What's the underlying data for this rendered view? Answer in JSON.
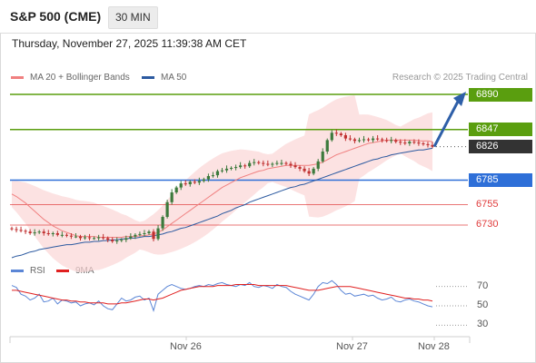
{
  "header": {
    "title": "S&P 500 (CME)",
    "interval": "30 MIN"
  },
  "timestamp": "Thursday, November 27, 2025 11:39:38 AM CET",
  "credit": "Research © 2025 Trading Central",
  "legend": {
    "ma20": "MA 20 + Bollinger Bands",
    "ma50": "MA 50",
    "rsi": "RSI",
    "rsi_ma": "9MA"
  },
  "colors": {
    "resistance": "#5a9e0f",
    "support": "#2e6fd8",
    "support_minor": "#e03c3c",
    "price_tag": "#333333",
    "ma20": "#f08080",
    "ma50": "#2c5aa0",
    "bollinger_fill": "#fbd5d5",
    "rsi": "#5b86d6",
    "rsi_ma": "#e02020",
    "candle_up": "#3c7a3c",
    "candle_down": "#c03030",
    "forecast_arrow": "#2e5fa8"
  },
  "chart_data": [
    {
      "type": "candlestick",
      "name": "price",
      "y_range": [
        6700,
        6900
      ],
      "x_ticks": [
        "Nov 26",
        "Nov 27",
        "Nov 28"
      ],
      "levels": [
        {
          "label": "6890",
          "value": 6890,
          "kind": "resistance"
        },
        {
          "label": "6847",
          "value": 6847,
          "kind": "resistance"
        },
        {
          "label": "6826",
          "value": 6826,
          "kind": "current"
        },
        {
          "label": "6785",
          "value": 6785,
          "kind": "support"
        },
        {
          "label": "6755",
          "value": 6755,
          "kind": "support_minor"
        },
        {
          "label": "6730",
          "value": 6730,
          "kind": "support_minor"
        }
      ],
      "close": [
        6725,
        6724,
        6723,
        6722,
        6720,
        6721,
        6722,
        6720,
        6719,
        6720,
        6718,
        6718,
        6717,
        6716,
        6716,
        6714,
        6715,
        6714,
        6714,
        6715,
        6714,
        6712,
        6710,
        6711,
        6712,
        6714,
        6716,
        6718,
        6719,
        6720,
        6722,
        6713,
        6726,
        6740,
        6758,
        6770,
        6776,
        6781,
        6780,
        6783,
        6782,
        6784,
        6786,
        6790,
        6791,
        6796,
        6797,
        6799,
        6800,
        6801,
        6803,
        6802,
        6806,
        6807,
        6806,
        6805,
        6804,
        6805,
        6806,
        6806,
        6805,
        6803,
        6801,
        6799,
        6796,
        6793,
        6799,
        6808,
        6820,
        6834,
        6843,
        6842,
        6840,
        6836,
        6835,
        6833,
        6834,
        6835,
        6834,
        6836,
        6835,
        6834,
        6833,
        6834,
        6832,
        6831,
        6830,
        6832,
        6831,
        6830,
        6829,
        6828,
        6826
      ],
      "ma20": [
        6768,
        6765,
        6761,
        6757,
        6752,
        6747,
        6742,
        6737,
        6733,
        6729,
        6726,
        6723,
        6721,
        6719,
        6717,
        6716,
        6716,
        6716,
        6716,
        6715,
        6715,
        6715,
        6715,
        6715,
        6715,
        6716,
        6716,
        6716,
        6717,
        6717,
        6718,
        6719,
        6721,
        6724,
        6728,
        6732,
        6736,
        6740,
        6744,
        6748,
        6752,
        6756,
        6760,
        6764,
        6768,
        6772,
        6776,
        6779,
        6782,
        6785,
        6788,
        6790,
        6792,
        6794,
        6796,
        6797,
        6799,
        6800,
        6801,
        6802,
        6803,
        6803,
        6803,
        6803,
        6803,
        6803,
        6804,
        6805,
        6807,
        6810,
        6813,
        6816,
        6818,
        6820,
        6822,
        6824,
        6826,
        6828,
        6830,
        6831,
        6832,
        6833,
        6834,
        6834,
        6834,
        6834,
        6834,
        6834,
        6834,
        6833,
        6833,
        6833,
        6832
      ],
      "ma50": [
        6690,
        6692,
        6693,
        6695,
        6697,
        6698,
        6700,
        6701,
        6702,
        6703,
        6704,
        6705,
        6706,
        6706,
        6707,
        6708,
        6709,
        6709,
        6710,
        6710,
        6711,
        6711,
        6712,
        6712,
        6713,
        6713,
        6714,
        6714,
        6715,
        6716,
        6716,
        6717,
        6718,
        6719,
        6721,
        6722,
        6724,
        6726,
        6727,
        6729,
        6731,
        6733,
        6735,
        6737,
        6739,
        6741,
        6744,
        6746,
        6748,
        6751,
        6753,
        6755,
        6758,
        6760,
        6762,
        6764,
        6766,
        6768,
        6770,
        6772,
        6774,
        6776,
        6777,
        6779,
        6780,
        6782,
        6784,
        6786,
        6788,
        6790,
        6792,
        6794,
        6796,
        6798,
        6800,
        6802,
        6804,
        6806,
        6808,
        6810,
        6811,
        6813,
        6814,
        6816,
        6817,
        6818,
        6819,
        6820,
        6821,
        6822,
        6822,
        6823,
        6824
      ],
      "forecast": {
        "from": 6826,
        "to": 6890
      }
    },
    {
      "type": "line",
      "name": "rsi",
      "y_range": [
        20,
        80
      ],
      "y_ticks": [
        "70",
        "50",
        "30"
      ],
      "series": [
        {
          "name": "RSI",
          "values": [
            71,
            69,
            62,
            60,
            56,
            58,
            62,
            54,
            55,
            58,
            52,
            56,
            55,
            53,
            54,
            50,
            52,
            53,
            51,
            55,
            50,
            47,
            46,
            52,
            58,
            55,
            56,
            59,
            60,
            56,
            58,
            45,
            62,
            66,
            70,
            72,
            70,
            68,
            67,
            68,
            70,
            71,
            70,
            72,
            71,
            73,
            74,
            72,
            71,
            70,
            72,
            71,
            74,
            70,
            69,
            71,
            70,
            68,
            72,
            70,
            69,
            65,
            62,
            60,
            58,
            56,
            62,
            70,
            74,
            73,
            76,
            72,
            66,
            62,
            63,
            60,
            61,
            62,
            60,
            61,
            58,
            56,
            57,
            59,
            55,
            54,
            56,
            57,
            55,
            54,
            52,
            50,
            49
          ]
        },
        {
          "name": "9MA",
          "values": [
            66,
            66,
            65,
            64,
            63,
            62,
            61,
            60,
            59,
            58,
            57,
            56,
            56,
            55,
            55,
            54,
            54,
            53,
            53,
            53,
            53,
            52,
            52,
            52,
            53,
            53,
            54,
            55,
            56,
            57,
            57,
            56,
            57,
            58,
            60,
            62,
            64,
            66,
            67,
            68,
            69,
            70,
            70,
            70,
            70,
            71,
            71,
            71,
            71,
            72,
            72,
            72,
            72,
            72,
            71,
            71,
            71,
            71,
            71,
            71,
            71,
            70,
            69,
            68,
            67,
            66,
            66,
            66,
            67,
            68,
            69,
            70,
            70,
            70,
            70,
            69,
            68,
            67,
            66,
            65,
            64,
            63,
            62,
            61,
            60,
            59,
            58,
            58,
            57,
            57,
            56,
            56,
            55
          ]
        }
      ]
    }
  ]
}
